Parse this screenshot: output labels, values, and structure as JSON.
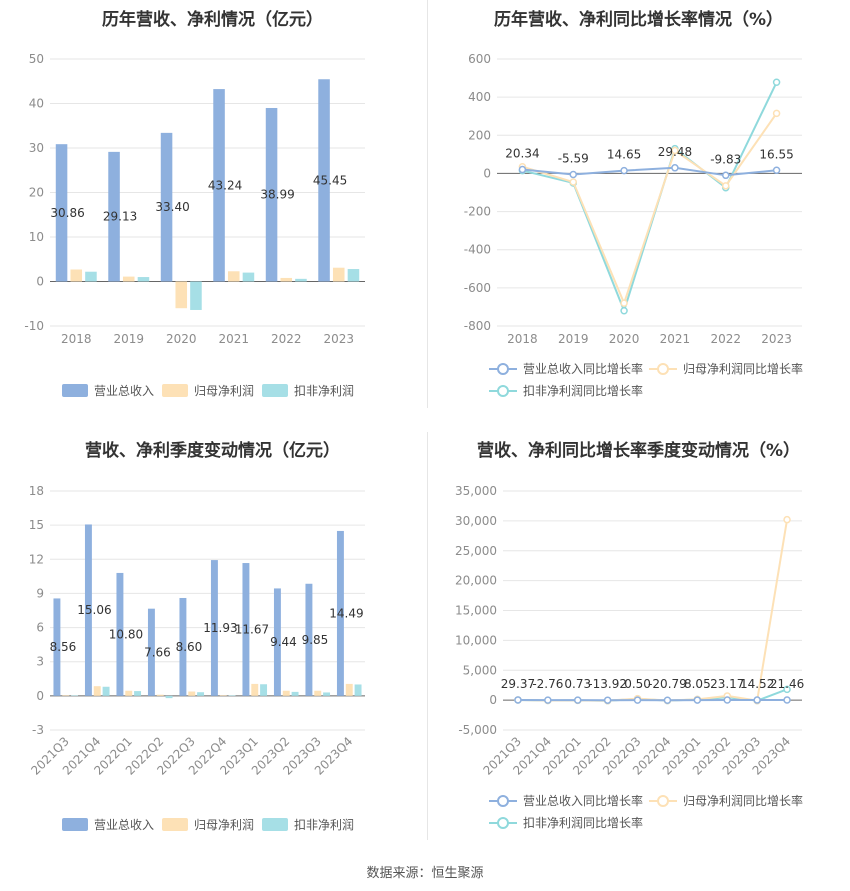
{
  "footer": {
    "source": "数据来源：恒生聚源"
  },
  "charts": [
    {
      "title": "历年营收、净利情况（亿元）",
      "type": "bar",
      "categories": [
        "2018",
        "2019",
        "2020",
        "2021",
        "2022",
        "2023"
      ],
      "ylim": [
        -10,
        50
      ],
      "yticks": [
        -10,
        0,
        10,
        20,
        30,
        40,
        50
      ],
      "series": [
        {
          "name": "营业总收入",
          "color": "#8eb0de",
          "values": [
            30.86,
            29.13,
            33.4,
            43.24,
            38.99,
            45.45
          ],
          "labels": [
            "30.86",
            "29.13",
            "33.40",
            "43.24",
            "38.99",
            "45.45"
          ]
        },
        {
          "name": "归母净利润",
          "color": "#fde1b6",
          "values": [
            2.7,
            1.1,
            -6.0,
            2.3,
            0.8,
            3.1
          ]
        },
        {
          "name": "扣非净利润",
          "color": "#a6dfe6",
          "values": [
            2.2,
            1.0,
            -6.4,
            2.0,
            0.6,
            2.8
          ]
        }
      ],
      "grid": true,
      "legend": "bottom"
    },
    {
      "title": "历年营收、净利同比增长率情况（%）",
      "type": "line",
      "categories": [
        "2018",
        "2019",
        "2020",
        "2021",
        "2022",
        "2023"
      ],
      "ylim": [
        -800,
        600
      ],
      "yticks": [
        -800,
        -600,
        -400,
        -200,
        0,
        200,
        400,
        600
      ],
      "series": [
        {
          "name": "营业总收入同比增长率",
          "color": "#8eb0de",
          "values": [
            20.34,
            -5.59,
            14.65,
            29.48,
            -9.83,
            16.55
          ],
          "labels": [
            "20.34",
            "-5.59",
            "14.65",
            "29.48",
            "-9.83",
            "16.55"
          ]
        },
        {
          "name": "归母净利润同比增长率",
          "color": "#fde1b6",
          "values": [
            35,
            -45,
            -680,
            120,
            -65,
            315
          ]
        },
        {
          "name": "扣非净利润同比增长率",
          "color": "#8fd9dc",
          "values": [
            15,
            -50,
            -720,
            130,
            -75,
            478
          ]
        }
      ],
      "grid": true,
      "legend": "bottom"
    },
    {
      "title": "营收、净利季度变动情况（亿元）",
      "type": "bar",
      "categories": [
        "2021Q3",
        "2021Q4",
        "2022Q1",
        "2022Q2",
        "2022Q3",
        "2022Q4",
        "2023Q1",
        "2023Q2",
        "2023Q3",
        "2023Q4"
      ],
      "ylim": [
        -3,
        18
      ],
      "yticks": [
        -3,
        0,
        3,
        6,
        9,
        12,
        15,
        18
      ],
      "series": [
        {
          "name": "营业总收入",
          "color": "#8eb0de",
          "values": [
            8.56,
            15.06,
            10.8,
            7.66,
            8.6,
            11.93,
            11.67,
            9.44,
            9.85,
            14.49
          ],
          "labels": [
            "8.56",
            "15.06",
            "10.80",
            "7.66",
            "8.60",
            "11.93",
            "11.67",
            "9.44",
            "9.85",
            "14.49"
          ]
        },
        {
          "name": "归母净利润",
          "color": "#fde1b6",
          "values": [
            0.05,
            0.85,
            0.45,
            0.1,
            0.38,
            0.05,
            1.05,
            0.45,
            0.45,
            1.05
          ]
        },
        {
          "name": "扣非净利润",
          "color": "#a6dfe6",
          "values": [
            0.03,
            0.8,
            0.42,
            -0.2,
            0.32,
            0.03,
            1.02,
            0.35,
            0.3,
            1.0
          ]
        }
      ],
      "grid": true,
      "legend": "bottom"
    },
    {
      "title": "营收、净利同比增长率季度变动情况（%）",
      "type": "line",
      "categories": [
        "2021Q3",
        "2021Q4",
        "2022Q1",
        "2022Q2",
        "2022Q3",
        "2022Q4",
        "2023Q1",
        "2023Q2",
        "2023Q3",
        "2023Q4"
      ],
      "ylim": [
        -5000,
        35000
      ],
      "yticks": [
        -5000,
        0,
        5000,
        10000,
        15000,
        20000,
        25000,
        30000,
        35000
      ],
      "ytick_labels": [
        "-5,000",
        "0",
        "5,000",
        "10,000",
        "15,000",
        "20,000",
        "25,000",
        "30,000",
        "35,000"
      ],
      "series": [
        {
          "name": "营业总收入同比增长率",
          "color": "#8eb0de",
          "values": [
            29.37,
            -2.76,
            0.73,
            -13.92,
            0.5,
            -20.79,
            8.05,
            23.17,
            14.52,
            21.46
          ],
          "labels": [
            "29.37",
            "-2.76",
            "0.73",
            "-13.92",
            "0.50",
            "-20.79",
            "8.05",
            "23.17",
            "14.52",
            "21.46"
          ]
        },
        {
          "name": "归母净利润同比增长率",
          "color": "#fde1b6",
          "values": [
            30,
            -60,
            -40,
            -90,
            250,
            -70,
            120,
            700,
            -90,
            30200
          ]
        },
        {
          "name": "扣非净利润同比增长率",
          "color": "#8fd9dc",
          "values": [
            25,
            -55,
            -35,
            -95,
            200,
            -75,
            110,
            480,
            -85,
            1800
          ]
        }
      ],
      "grid": true,
      "legend": "bottom"
    }
  ]
}
